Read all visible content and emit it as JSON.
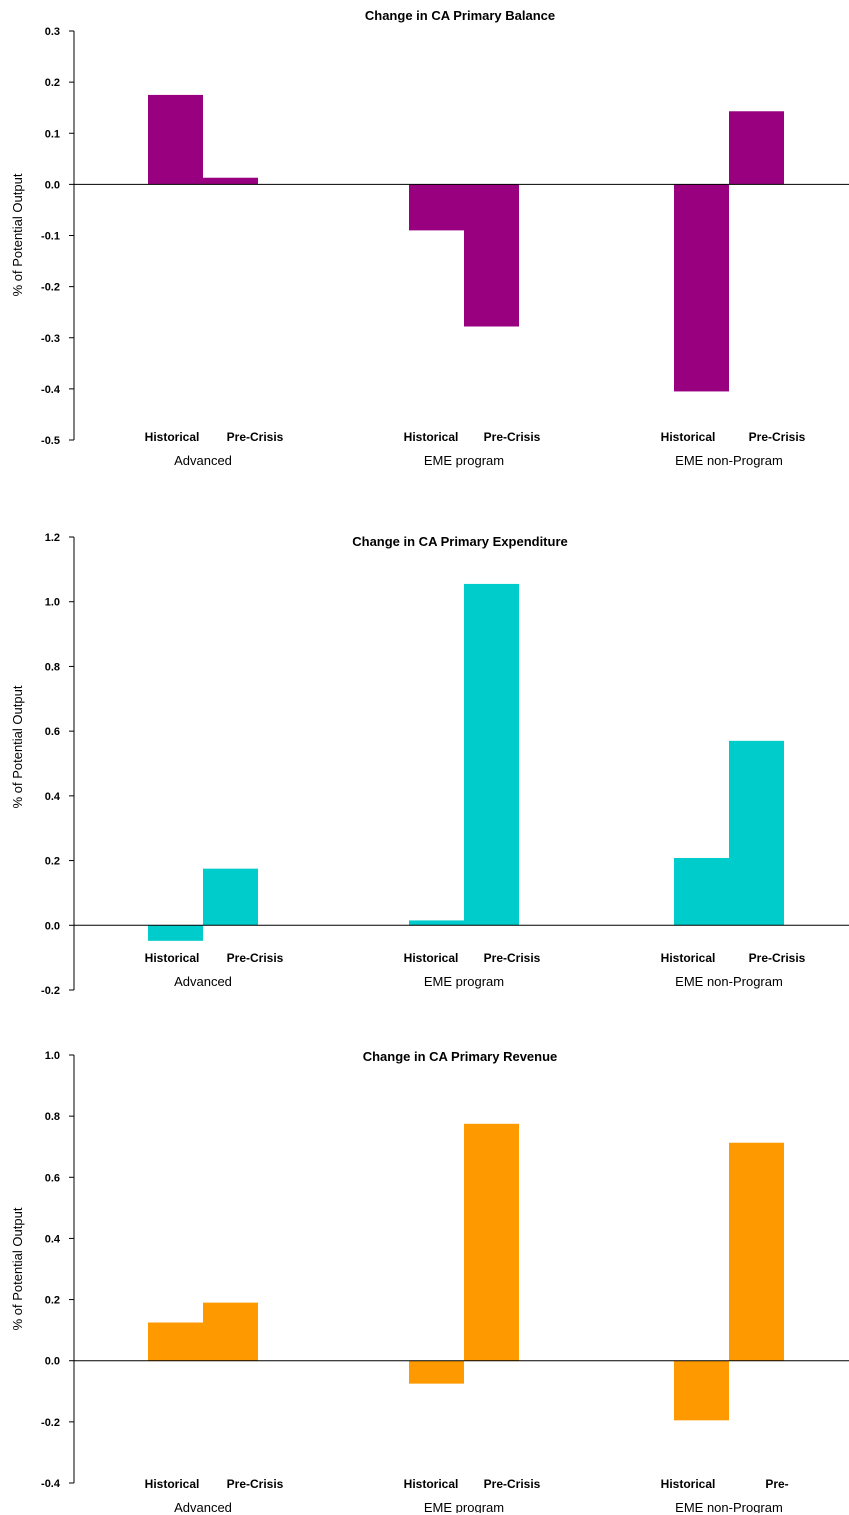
{
  "chart_data": [
    {
      "type": "bar",
      "title": "Change in CA Primary Balance",
      "ylabel": "% of Potential Output",
      "ylim": [
        -0.5,
        0.3
      ],
      "yticks": [
        "0.3",
        "0.2",
        "0.1",
        "0.0",
        "-0.1",
        "-0.2",
        "-0.3",
        "-0.4",
        "-0.5"
      ],
      "categories": [
        "Advanced",
        "EME program",
        "EME non-Program"
      ],
      "series_labels": [
        [
          "Historical",
          "Pre-Crisis"
        ],
        [
          "Historical",
          "Pre-Crisis"
        ],
        [
          "Historical",
          "Pre-Crisis"
        ]
      ],
      "values": [
        [
          0.175,
          0.013
        ],
        [
          -0.09,
          -0.278
        ],
        [
          -0.405,
          0.143
        ]
      ],
      "color": "#990080"
    },
    {
      "type": "bar",
      "title": "Change in CA Primary Expenditure",
      "ylabel": "% of Potential Output",
      "ylim": [
        -0.2,
        1.2
      ],
      "yticks": [
        "1.2",
        "1.0",
        "0.8",
        "0.6",
        "0.4",
        "0.2",
        "0.0",
        "-0.2"
      ],
      "categories": [
        "Advanced",
        "EME program",
        "EME non-Program"
      ],
      "series_labels": [
        [
          "Historical",
          "Pre-Crisis"
        ],
        [
          "Historical",
          "Pre-Crisis"
        ],
        [
          "Historical",
          "Pre-Crisis"
        ]
      ],
      "values": [
        [
          -0.048,
          0.175
        ],
        [
          0.015,
          1.055
        ],
        [
          0.208,
          0.57
        ]
      ],
      "color": "#00CCCC"
    },
    {
      "type": "bar",
      "title": "Change in CA Primary Revenue",
      "ylabel": "% of Potential Output",
      "ylim": [
        -0.4,
        1.0
      ],
      "yticks": [
        "1.0",
        "0.8",
        "0.6",
        "0.4",
        "0.2",
        "0.0",
        "-0.2",
        "-0.4"
      ],
      "categories": [
        "Advanced",
        "EME program",
        "EME non-Program"
      ],
      "series_labels": [
        [
          "Historical",
          "Pre-Crisis"
        ],
        [
          "Historical",
          "Pre-Crisis"
        ],
        [
          "Historical",
          "Pre-"
        ]
      ],
      "values": [
        [
          0.125,
          0.19
        ],
        [
          -0.075,
          0.775
        ],
        [
          -0.195,
          0.713
        ]
      ],
      "color": "#FF9900"
    }
  ]
}
